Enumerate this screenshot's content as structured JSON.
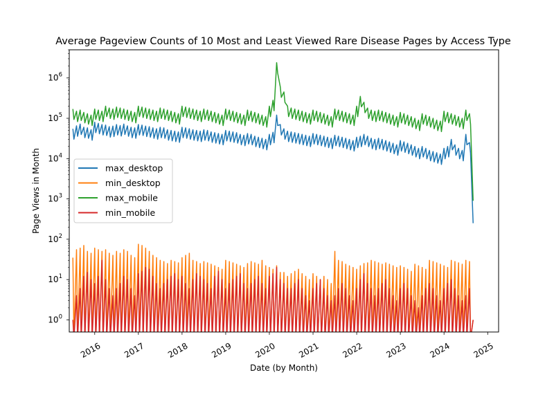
{
  "chart_data": {
    "type": "line",
    "title": "Average Pageview Counts of 10 Most and Least Viewed Rare Disease Pages by Access Type",
    "xlabel": "Date (by Month)",
    "ylabel": "Page Views in Month",
    "y_scale": "log",
    "ylim": [
      0.5,
      5000000
    ],
    "xlim": [
      "2015-06",
      "2025-04"
    ],
    "x_ticks": [
      "2016",
      "2017",
      "2018",
      "2019",
      "2020",
      "2021",
      "2022",
      "2023",
      "2024",
      "2025"
    ],
    "y_ticks": [
      {
        "value": 1,
        "label": "10^0"
      },
      {
        "value": 10,
        "label": "10^1"
      },
      {
        "value": 100,
        "label": "10^2"
      },
      {
        "value": 1000,
        "label": "10^3"
      },
      {
        "value": 10000,
        "label": "10^4"
      },
      {
        "value": 100000,
        "label": "10^5"
      },
      {
        "value": 1000000,
        "label": "10^6"
      }
    ],
    "legend_position": "center-left",
    "grid": false,
    "x": [
      "2015-07",
      "2015-08",
      "2015-09",
      "2015-10",
      "2015-11",
      "2015-12",
      "2016-01",
      "2016-02",
      "2016-03",
      "2016-04",
      "2016-05",
      "2016-06",
      "2016-07",
      "2016-08",
      "2016-09",
      "2016-10",
      "2016-11",
      "2016-12",
      "2017-01",
      "2017-02",
      "2017-03",
      "2017-04",
      "2017-05",
      "2017-06",
      "2017-07",
      "2017-08",
      "2017-09",
      "2017-10",
      "2017-11",
      "2017-12",
      "2018-01",
      "2018-02",
      "2018-03",
      "2018-04",
      "2018-05",
      "2018-06",
      "2018-07",
      "2018-08",
      "2018-09",
      "2018-10",
      "2018-11",
      "2018-12",
      "2019-01",
      "2019-02",
      "2019-03",
      "2019-04",
      "2019-05",
      "2019-06",
      "2019-07",
      "2019-08",
      "2019-09",
      "2019-10",
      "2019-11",
      "2019-12",
      "2020-01",
      "2020-02",
      "2020-03",
      "2020-04",
      "2020-05",
      "2020-06",
      "2020-07",
      "2020-08",
      "2020-09",
      "2020-10",
      "2020-11",
      "2020-12",
      "2021-01",
      "2021-02",
      "2021-03",
      "2021-04",
      "2021-05",
      "2021-06",
      "2021-07",
      "2021-08",
      "2021-09",
      "2021-10",
      "2021-11",
      "2021-12",
      "2022-01",
      "2022-02",
      "2022-03",
      "2022-04",
      "2022-05",
      "2022-06",
      "2022-07",
      "2022-08",
      "2022-09",
      "2022-10",
      "2022-11",
      "2022-12",
      "2023-01",
      "2023-02",
      "2023-03",
      "2023-04",
      "2023-05",
      "2023-06",
      "2023-07",
      "2023-08",
      "2023-09",
      "2023-10",
      "2023-11",
      "2023-12",
      "2024-01",
      "2024-02",
      "2024-03",
      "2024-04",
      "2024-05",
      "2024-06",
      "2024-07",
      "2024-08",
      "2024-09"
    ],
    "series": [
      {
        "name": "max_desktop",
        "color": "#1f77b4",
        "values": [
          55000,
          65000,
          72000,
          60000,
          58000,
          52000,
          80000,
          75000,
          70000,
          68000,
          62000,
          64000,
          70000,
          66000,
          72000,
          65000,
          60000,
          58000,
          70000,
          68000,
          64000,
          62000,
          58000,
          55000,
          60000,
          58000,
          52000,
          50000,
          48000,
          46000,
          60000,
          58000,
          55000,
          52000,
          50000,
          48000,
          52000,
          50000,
          46000,
          44000,
          42000,
          40000,
          50000,
          48000,
          46000,
          44000,
          40000,
          38000,
          42000,
          40000,
          36000,
          34000,
          32000,
          30000,
          40000,
          45000,
          120000,
          70000,
          55000,
          48000,
          46000,
          44000,
          42000,
          40000,
          38000,
          36000,
          42000,
          40000,
          38000,
          36000,
          34000,
          32000,
          38000,
          36000,
          34000,
          32000,
          30000,
          28000,
          34000,
          36000,
          40000,
          36000,
          32000,
          30000,
          32000,
          30000,
          28000,
          26000,
          24000,
          22000,
          28000,
          26000,
          24000,
          22000,
          20000,
          18000,
          20000,
          18000,
          16000,
          15000,
          14000,
          13000,
          18000,
          20000,
          30000,
          22000,
          18000,
          16000,
          40000,
          25000,
          250
        ]
      },
      {
        "name": "min_desktop",
        "color": "#ff7f0e",
        "values": [
          35,
          55,
          60,
          70,
          50,
          45,
          60,
          55,
          50,
          55,
          45,
          40,
          50,
          45,
          55,
          50,
          40,
          35,
          75,
          70,
          60,
          50,
          40,
          35,
          30,
          28,
          25,
          30,
          28,
          26,
          35,
          40,
          45,
          30,
          28,
          25,
          28,
          26,
          24,
          22,
          20,
          18,
          30,
          28,
          26,
          24,
          22,
          20,
          25,
          28,
          26,
          24,
          30,
          22,
          20,
          18,
          22,
          15,
          15,
          12,
          14,
          16,
          18,
          14,
          12,
          10,
          14,
          12,
          10,
          12,
          10,
          8,
          50,
          30,
          28,
          24,
          22,
          20,
          18,
          22,
          25,
          26,
          30,
          28,
          26,
          24,
          26,
          24,
          22,
          20,
          22,
          20,
          18,
          16,
          24,
          22,
          20,
          18,
          30,
          28,
          26,
          24,
          22,
          20,
          30,
          28,
          26,
          24,
          30,
          28,
          1
        ]
      },
      {
        "name": "max_mobile",
        "color": "#2ca02c",
        "values": [
          170000,
          150000,
          160000,
          140000,
          130000,
          120000,
          170000,
          160000,
          150000,
          200000,
          180000,
          170000,
          190000,
          180000,
          170000,
          160000,
          150000,
          140000,
          200000,
          190000,
          180000,
          170000,
          160000,
          150000,
          180000,
          170000,
          160000,
          150000,
          140000,
          130000,
          200000,
          190000,
          180000,
          170000,
          160000,
          150000,
          170000,
          160000,
          150000,
          140000,
          130000,
          120000,
          170000,
          160000,
          150000,
          140000,
          130000,
          120000,
          160000,
          150000,
          140000,
          130000,
          120000,
          110000,
          200000,
          280000,
          2400000,
          600000,
          450000,
          200000,
          180000,
          170000,
          160000,
          150000,
          140000,
          130000,
          160000,
          150000,
          140000,
          130000,
          120000,
          110000,
          170000,
          160000,
          150000,
          140000,
          130000,
          120000,
          200000,
          350000,
          250000,
          180000,
          160000,
          150000,
          160000,
          150000,
          140000,
          130000,
          120000,
          110000,
          140000,
          130000,
          120000,
          110000,
          100000,
          90000,
          130000,
          120000,
          110000,
          100000,
          90000,
          85000,
          150000,
          140000,
          130000,
          120000,
          110000,
          100000,
          160000,
          130000,
          900
        ]
      },
      {
        "name": "min_mobile",
        "color": "#d62728",
        "values": [
          1,
          4,
          6,
          12,
          15,
          10,
          8,
          12,
          30,
          10,
          6,
          4,
          6,
          8,
          12,
          10,
          6,
          4,
          14,
          16,
          20,
          18,
          12,
          8,
          6,
          8,
          10,
          12,
          14,
          10,
          12,
          8,
          6,
          10,
          14,
          12,
          10,
          8,
          6,
          12,
          16,
          10,
          6,
          8,
          10,
          12,
          14,
          8,
          6,
          8,
          10,
          12,
          8,
          6,
          12,
          14,
          20,
          10,
          8,
          6,
          6,
          8,
          10,
          6,
          4,
          3,
          6,
          8,
          10,
          6,
          4,
          3,
          4,
          6,
          8,
          6,
          4,
          3,
          6,
          10,
          14,
          8,
          6,
          4,
          6,
          8,
          10,
          6,
          4,
          3,
          6,
          8,
          6,
          4,
          3,
          2,
          4,
          6,
          8,
          6,
          4,
          3,
          6,
          8,
          10,
          6,
          4,
          3,
          4,
          6,
          1
        ]
      }
    ]
  }
}
